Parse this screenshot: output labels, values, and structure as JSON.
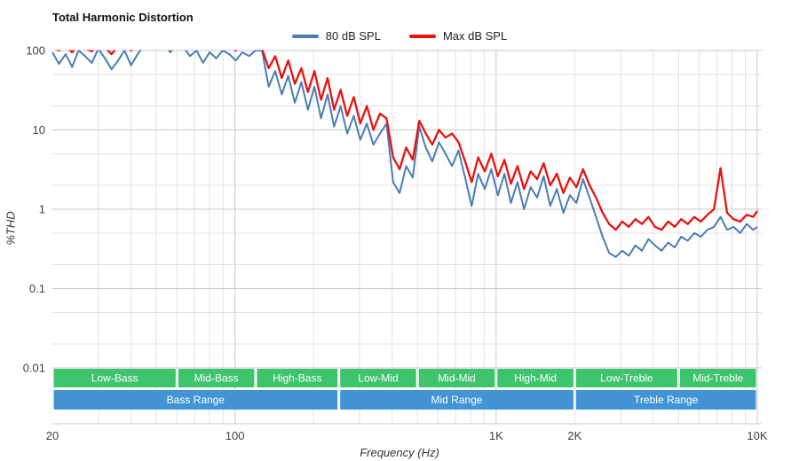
{
  "title": "Total Harmonic Distortion",
  "legend": [
    {
      "label": "80 dB SPL",
      "color": "#4a7db6"
    },
    {
      "label": "Max dB SPL",
      "color": "#e8120f"
    }
  ],
  "colors": {
    "series_80db": "#4a7db6",
    "series_max": "#e8120f",
    "band_green": "#3ec46d",
    "range_blue": "#4294d4",
    "grid_minor": "#e2e2e2",
    "grid_major": "#c9c9c9",
    "axis_text": "#3f3f3f"
  },
  "chart_data": {
    "type": "line",
    "title": "Total Harmonic Distortion",
    "xlabel": "Frequency (Hz)",
    "ylabel": "%THD",
    "x_scale": "log",
    "y_scale": "log",
    "xlim": [
      20,
      10000
    ],
    "ylim": [
      0.01,
      100
    ],
    "grid": true,
    "legend_position": "top-center",
    "note": "values above 100 are off-scale and clipped at the plot top",
    "x_ticks": [
      {
        "value": 20,
        "label": "20"
      },
      {
        "value": 100,
        "label": "100"
      },
      {
        "value": 1000,
        "label": "1K"
      },
      {
        "value": 2000,
        "label": "2K"
      },
      {
        "value": 10000,
        "label": "10K"
      }
    ],
    "y_ticks": [
      {
        "value": 100,
        "label": "100"
      },
      {
        "value": 10,
        "label": "10"
      },
      {
        "value": 1,
        "label": "1"
      },
      {
        "value": 0.1,
        "label": "0.1"
      },
      {
        "value": 0.01,
        "label": "0.01"
      }
    ],
    "x": [
      20,
      21.2,
      22.5,
      23.8,
      25.2,
      26.7,
      28.3,
      30,
      31.8,
      33.7,
      35.7,
      37.8,
      40,
      42.4,
      44.9,
      47.6,
      50.4,
      53.4,
      56.6,
      60,
      63.5,
      67.3,
      71.3,
      75.5,
      80,
      84.8,
      89.8,
      95.2,
      100.8,
      106.8,
      113.2,
      119.9,
      127,
      134.6,
      142.6,
      151.1,
      160,
      169.6,
      179.7,
      190.3,
      201.6,
      213.6,
      226.3,
      239.7,
      254,
      269.1,
      285.1,
      302,
      320,
      339,
      359.2,
      380.5,
      403.2,
      427.1,
      452.5,
      479.4,
      507.9,
      538.1,
      570.1,
      604,
      639.9,
      678,
      718.2,
      760.9,
      806.1,
      854,
      904.8,
      958.6,
      1015.6,
      1075.9,
      1139.9,
      1207.6,
      1279.4,
      1355.4,
      1436,
      1521.4,
      1611.8,
      1707.6,
      1809.1,
      1916.6,
      2030.5,
      2151.2,
      2279,
      2414.5,
      2558,
      2710,
      2871.1,
      3041.7,
      3222.5,
      3414,
      3616.9,
      3831.9,
      4059.6,
      4300.9,
      4556.5,
      4827.3,
      5114.2,
      5418.1,
      5740.1,
      6081.3,
      6442.7,
      6825.6,
      7231.3,
      7661.1,
      8116.4,
      8598.8,
      9109.9,
      9651.3,
      10000
    ],
    "series": [
      {
        "name": "80 dB SPL",
        "color": "#4a7db6",
        "values": [
          95,
          68,
          90,
          62,
          100,
          85,
          70,
          105,
          80,
          58,
          75,
          100,
          65,
          90,
          115,
          125,
          130,
          120,
          95,
          125,
          110,
          85,
          100,
          70,
          95,
          80,
          100,
          90,
          75,
          95,
          85,
          100,
          100,
          35,
          55,
          28,
          48,
          22,
          40,
          18,
          35,
          14,
          28,
          11,
          20,
          9,
          15,
          7.5,
          12,
          6.5,
          9,
          12,
          2.2,
          1.6,
          3.5,
          2.5,
          11,
          6,
          4,
          7,
          5,
          3.5,
          5.5,
          2.5,
          1.1,
          2.8,
          1.8,
          3.2,
          1.5,
          2.8,
          1.2,
          2.2,
          1.0,
          1.9,
          1.4,
          2.6,
          1.1,
          1.8,
          0.9,
          1.5,
          1.2,
          2.4,
          1.4,
          0.8,
          0.45,
          0.28,
          0.25,
          0.3,
          0.26,
          0.35,
          0.3,
          0.42,
          0.35,
          0.3,
          0.38,
          0.33,
          0.45,
          0.4,
          0.5,
          0.45,
          0.55,
          0.6,
          0.8,
          0.55,
          0.6,
          0.5,
          0.65,
          0.55,
          0.6
        ]
      },
      {
        "name": "Max dB SPL",
        "color": "#e8120f",
        "values": [
          110,
          100,
          115,
          95,
          120,
          105,
          98,
          120,
          110,
          90,
          115,
          120,
          100,
          120,
          130,
          140,
          150,
          140,
          130,
          150,
          140,
          120,
          130,
          110,
          125,
          105,
          120,
          115,
          100,
          120,
          110,
          120,
          105,
          60,
          85,
          45,
          75,
          38,
          60,
          30,
          55,
          24,
          45,
          18,
          32,
          15,
          26,
          12,
          20,
          10,
          16,
          14,
          4.5,
          3.2,
          6,
          4.2,
          13,
          9,
          6.5,
          10,
          8,
          9,
          7,
          4,
          2.2,
          4.5,
          3,
          5,
          2.6,
          4.2,
          2.1,
          3.5,
          1.8,
          3.0,
          2.4,
          3.8,
          2.0,
          2.8,
          1.6,
          2.5,
          1.9,
          3.2,
          2.0,
          1.4,
          0.9,
          0.65,
          0.55,
          0.7,
          0.6,
          0.75,
          0.65,
          0.8,
          0.6,
          0.55,
          0.7,
          0.6,
          0.75,
          0.65,
          0.8,
          0.7,
          0.85,
          1.0,
          3.3,
          0.9,
          0.75,
          0.7,
          0.85,
          0.8,
          0.95
        ]
      }
    ],
    "frequency_bands": [
      {
        "label": "Low-Bass",
        "from": 20,
        "to": 60
      },
      {
        "label": "Mid-Bass",
        "from": 60,
        "to": 120
      },
      {
        "label": "High-Bass",
        "from": 120,
        "to": 250
      },
      {
        "label": "Low-Mid",
        "from": 250,
        "to": 500
      },
      {
        "label": "Mid-Mid",
        "from": 500,
        "to": 1000
      },
      {
        "label": "High-Mid",
        "from": 1000,
        "to": 2000
      },
      {
        "label": "Low-Treble",
        "from": 2000,
        "to": 5000
      },
      {
        "label": "Mid-Treble",
        "from": 5000,
        "to": 10000
      }
    ],
    "frequency_ranges": [
      {
        "label": "Bass Range",
        "from": 20,
        "to": 250
      },
      {
        "label": "Mid Range",
        "from": 250,
        "to": 2000
      },
      {
        "label": "Treble Range",
        "from": 2000,
        "to": 10000
      }
    ]
  }
}
